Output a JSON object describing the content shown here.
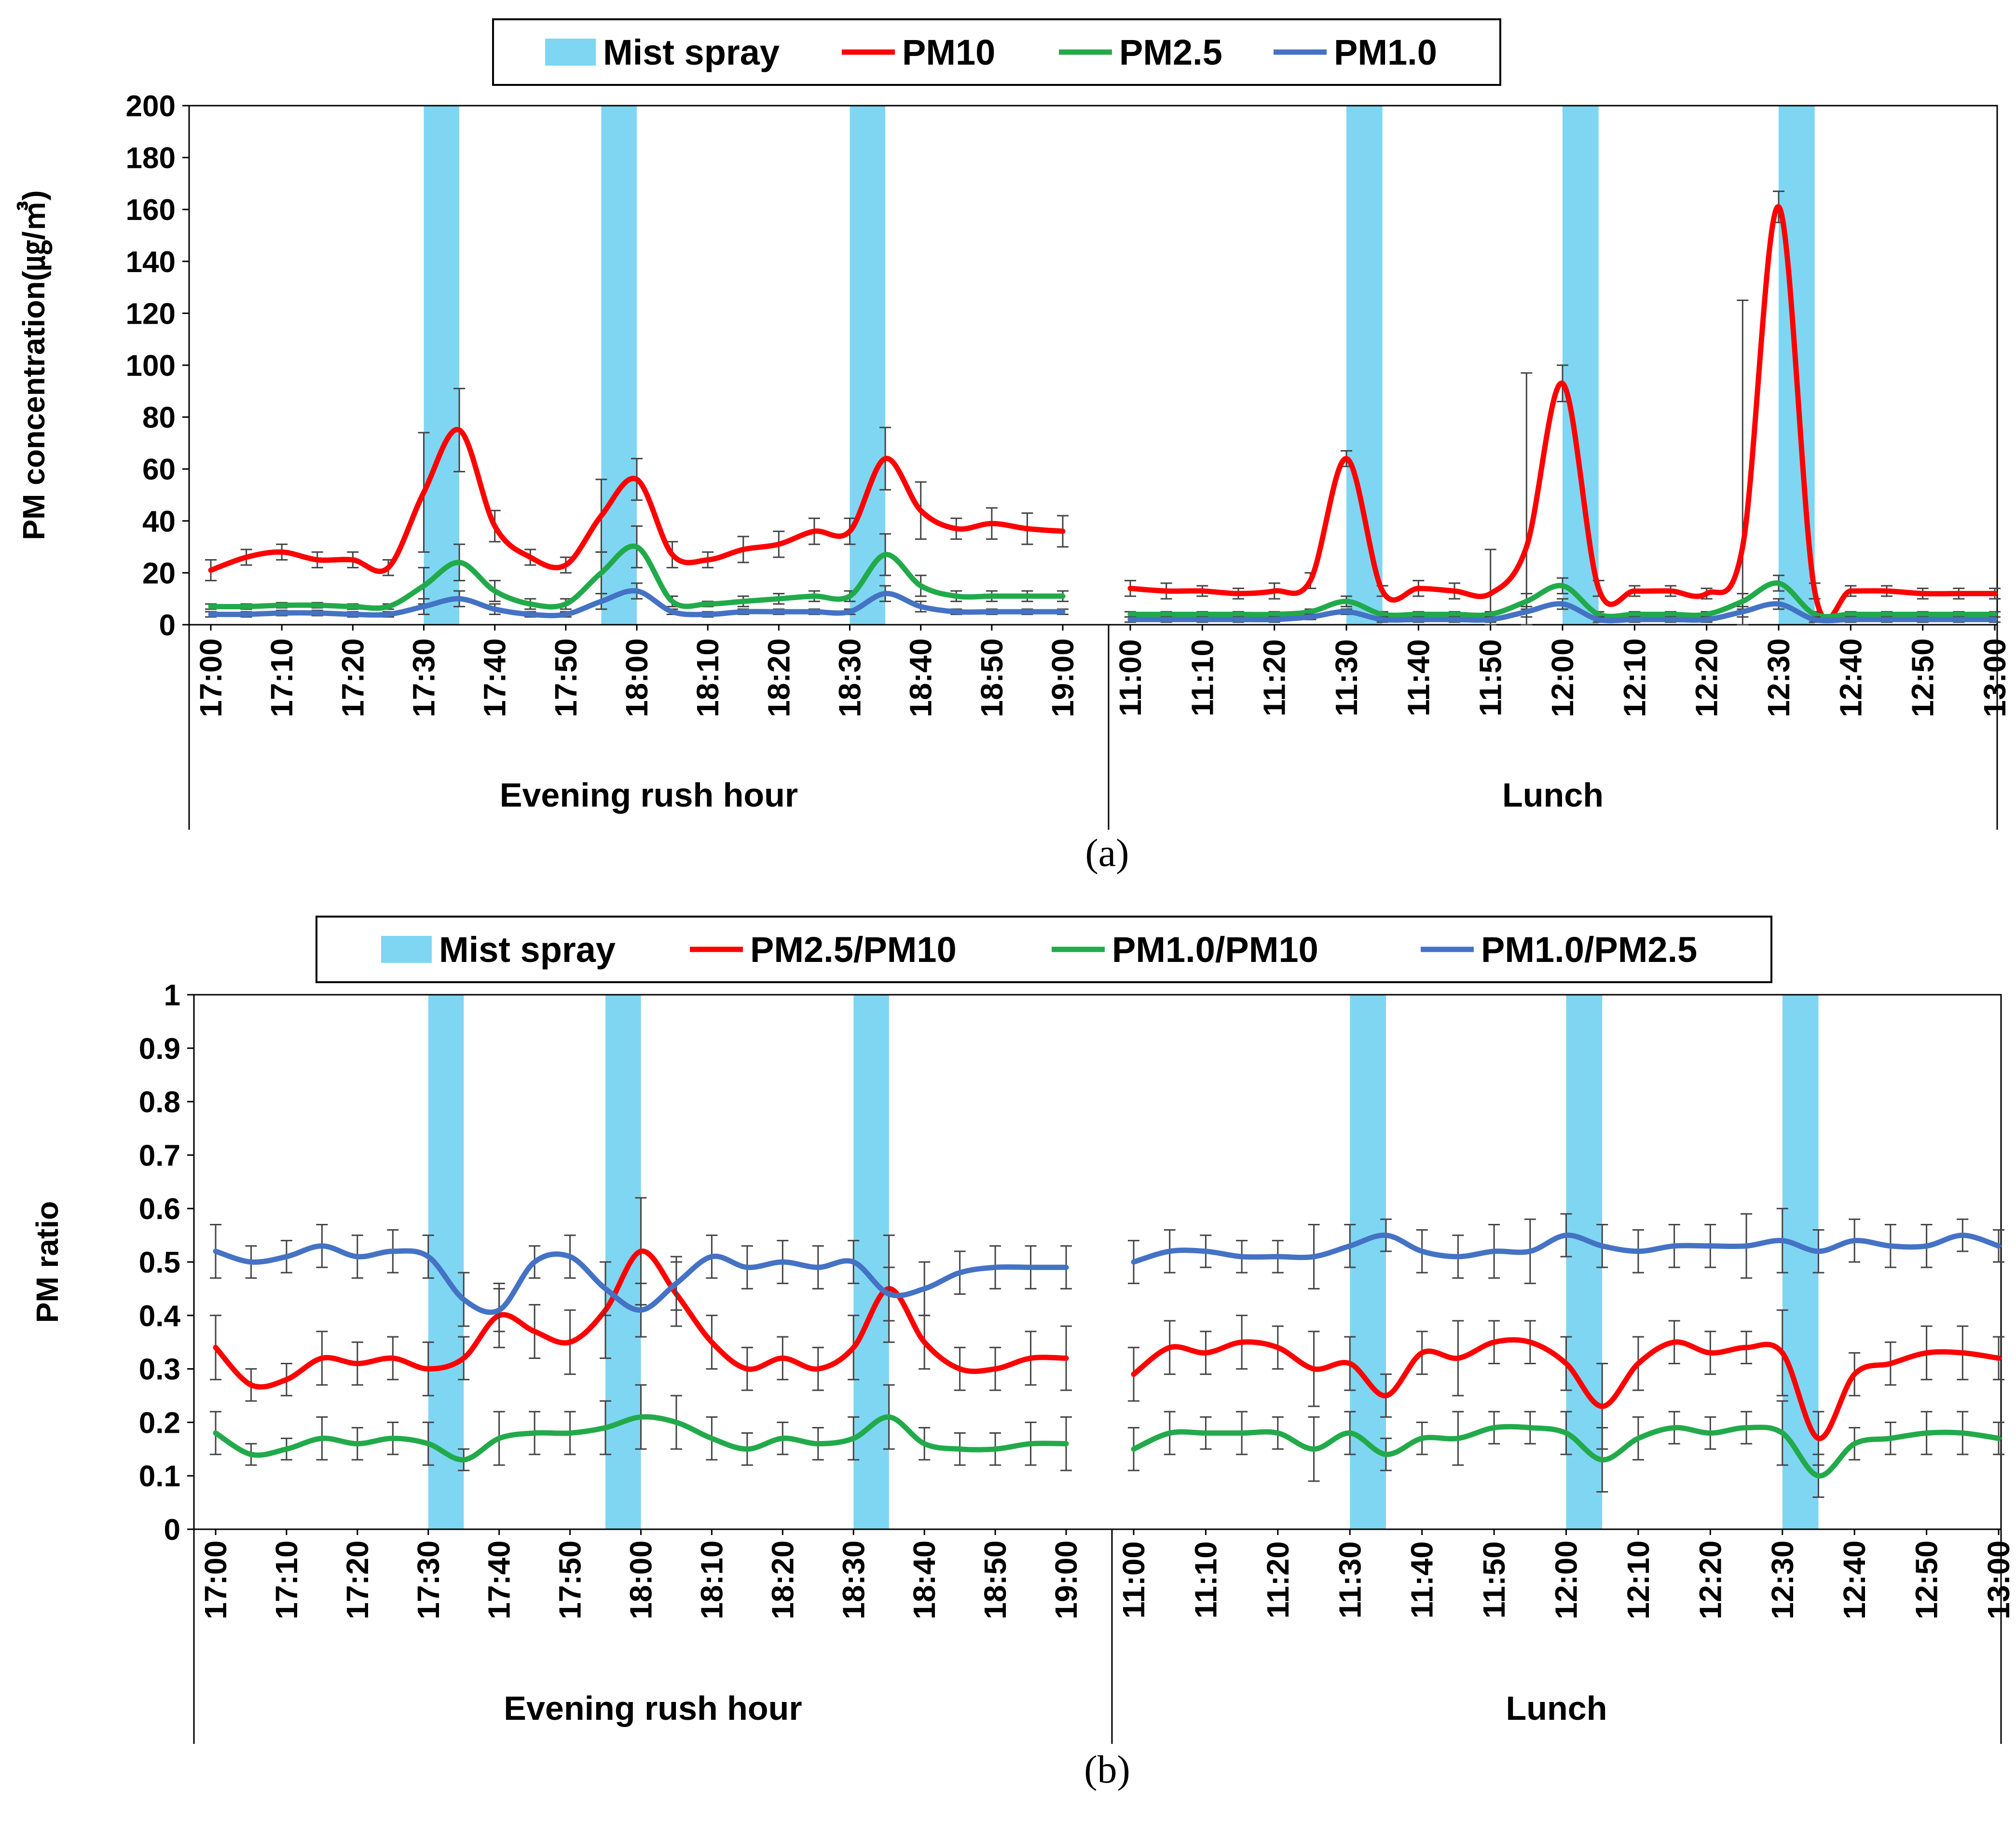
{
  "colors": {
    "mist": "#7fd6f2",
    "series_a": [
      "#ff0000",
      "#22aa4a",
      "#4472c4"
    ],
    "series_b": [
      "#ff0000",
      "#22aa4a",
      "#4472c4"
    ],
    "errorbar": "#444444",
    "axis": "#000000"
  },
  "charts": [
    {
      "panel_label": "(a)",
      "chart_data": {
        "type": "line",
        "ylabel": "PM concentration(㎍/㎥)",
        "ylim": [
          0,
          200
        ],
        "yticks": [
          0,
          20,
          40,
          60,
          80,
          100,
          120,
          140,
          160,
          180,
          200
        ],
        "ytick_labels": [
          "0",
          "20",
          "40",
          "60",
          "80",
          "100",
          "120",
          "140",
          "160",
          "180",
          "200"
        ],
        "legend": [
          "Mist spray",
          "PM10",
          "PM2.5",
          "PM1.0"
        ],
        "groups": [
          {
            "name": "Evening rush hour",
            "x_labels": [
              "17:00",
              "17:10",
              "17:20",
              "17:30",
              "17:40",
              "17:50",
              "18:00",
              "18:10",
              "18:20",
              "18:30",
              "18:40",
              "18:50",
              "19:00"
            ],
            "mist_spray_start_minutes": [
              30,
              55,
              90
            ],
            "series": [
              {
                "name": "PM10",
                "values": [
                  21,
                  26,
                  28,
                  25,
                  25,
                  22,
                  51,
                  75,
                  38,
                  26,
                  23,
                  42,
                  56,
                  27,
                  25,
                  29,
                  31,
                  36,
                  36,
                  64,
                  44,
                  37,
                  39,
                  37,
                  36
                ],
                "errors": [
                  4,
                  3,
                  3,
                  3,
                  3,
                  3,
                  23,
                  16,
                  6,
                  3,
                  3,
                  14,
                  8,
                  5,
                  3,
                  5,
                  5,
                  5,
                  5,
                  12,
                  11,
                  4,
                  6,
                  6,
                  6
                ]
              },
              {
                "name": "PM2.5",
                "values": [
                  7,
                  7,
                  7.5,
                  7.5,
                  7,
                  7,
                  15,
                  24,
                  13,
                  8,
                  8,
                  20,
                  30,
                  9,
                  8,
                  9,
                  10,
                  11,
                  11,
                  27,
                  15,
                  11,
                  11,
                  11,
                  11
                ],
                "errors": [
                  1,
                  1,
                  1,
                  1,
                  1,
                  1,
                  7,
                  7,
                  4,
                  2,
                  2,
                  8,
                  8,
                  2,
                  1,
                  2,
                  2,
                  2,
                  2,
                  8,
                  4,
                  2,
                  2,
                  2,
                  2
                ]
              },
              {
                "name": "PM1.0",
                "values": [
                  4,
                  4,
                  4.5,
                  4.5,
                  4,
                  4,
                  7,
                  10,
                  6,
                  4,
                  4,
                  9,
                  13,
                  5,
                  4,
                  5,
                  5,
                  5,
                  5,
                  12,
                  7,
                  5,
                  5,
                  5,
                  5
                ],
                "errors": [
                  1,
                  1,
                  1,
                  1,
                  1,
                  1,
                  3,
                  3,
                  2,
                  1,
                  1,
                  3,
                  3,
                  1,
                  1,
                  1,
                  1,
                  1,
                  1,
                  3,
                  2,
                  1,
                  1,
                  1,
                  1
                ]
              }
            ]
          },
          {
            "name": "Lunch",
            "x_labels": [
              "11:00",
              "11:10",
              "11:20",
              "11:30",
              "11:40",
              "11:50",
              "12:00",
              "12:10",
              "12:20",
              "12:30",
              "12:40",
              "12:50",
              "13:00"
            ],
            "mist_spray_start_minutes": [
              30,
              60,
              90
            ],
            "series": [
              {
                "name": "PM10",
                "values": [
                  14,
                  13,
                  13,
                  12,
                  13,
                  17,
                  64,
                  13,
                  14,
                  13,
                  12,
                  30,
                  93,
                  14,
                  13,
                  13,
                  12,
                  30,
                  161,
                  13,
                  13,
                  13,
                  12,
                  12,
                  12
                ],
                "errors": [
                  3,
                  3,
                  2,
                  2,
                  3,
                  3,
                  3,
                  2,
                  3,
                  3,
                  17,
                  67,
                  7,
                  3,
                  2,
                  2,
                  2,
                  95,
                  6,
                  3,
                  2,
                  2,
                  2,
                  2,
                  2
                ]
              },
              {
                "name": "PM2.5",
                "values": [
                  4,
                  4,
                  4,
                  4,
                  4,
                  5,
                  9,
                  4,
                  4,
                  4,
                  4,
                  9,
                  15,
                  4,
                  4,
                  4,
                  4,
                  9,
                  16,
                  4,
                  4,
                  4,
                  4,
                  4,
                  4
                ],
                "errors": [
                  1,
                  1,
                  1,
                  1,
                  1,
                  1,
                  2,
                  1,
                  1,
                  1,
                  1,
                  3,
                  3,
                  1,
                  1,
                  1,
                  1,
                  3,
                  3,
                  1,
                  1,
                  1,
                  1,
                  1,
                  1
                ]
              },
              {
                "name": "PM1.0",
                "values": [
                  2,
                  2,
                  2,
                  2,
                  2,
                  3,
                  5,
                  2,
                  2,
                  2,
                  2,
                  5,
                  8,
                  2,
                  2,
                  2,
                  2,
                  5,
                  8,
                  2,
                  2,
                  2,
                  2,
                  2,
                  2
                ],
                "errors": [
                  1,
                  1,
                  1,
                  1,
                  1,
                  1,
                  1,
                  1,
                  1,
                  1,
                  1,
                  2,
                  2,
                  1,
                  1,
                  1,
                  1,
                  2,
                  2,
                  1,
                  1,
                  1,
                  1,
                  1,
                  1
                ]
              }
            ]
          }
        ]
      }
    },
    {
      "panel_label": "(b)",
      "chart_data": {
        "type": "line",
        "ylabel": "PM ratio",
        "ylim": [
          0,
          1
        ],
        "yticks": [
          0,
          0.1,
          0.2,
          0.3,
          0.4,
          0.5,
          0.6,
          0.7,
          0.8,
          0.9,
          1
        ],
        "ytick_labels": [
          "0",
          "0.1",
          "0.2",
          "0.3",
          "0.4",
          "0.5",
          "0.6",
          "0.7",
          "0.8",
          "0.9",
          "1"
        ],
        "legend": [
          "Mist spray",
          "PM2.5/PM10",
          "PM1.0/PM10",
          "PM1.0/PM2.5"
        ],
        "groups": [
          {
            "name": "Evening rush hour",
            "x_labels": [
              "17:00",
              "17:10",
              "17:20",
              "17:30",
              "17:40",
              "17:50",
              "18:00",
              "18:10",
              "18:20",
              "18:30",
              "18:40",
              "18:50",
              "19:00"
            ],
            "mist_spray_start_minutes": [
              30,
              55,
              90
            ],
            "series": [
              {
                "name": "PM2.5/PM10",
                "values": [
                  0.34,
                  0.27,
                  0.28,
                  0.32,
                  0.31,
                  0.32,
                  0.3,
                  0.32,
                  0.4,
                  0.37,
                  0.35,
                  0.41,
                  0.52,
                  0.44,
                  0.35,
                  0.3,
                  0.32,
                  0.3,
                  0.34,
                  0.45,
                  0.35,
                  0.3,
                  0.3,
                  0.32,
                  0.32
                ],
                "errors": [
                  0.06,
                  0.03,
                  0.03,
                  0.05,
                  0.04,
                  0.04,
                  0.05,
                  0.04,
                  0.06,
                  0.05,
                  0.06,
                  0.09,
                  0.1,
                  0.06,
                  0.05,
                  0.04,
                  0.04,
                  0.04,
                  0.06,
                  0.1,
                  0.05,
                  0.04,
                  0.04,
                  0.05,
                  0.06
                ]
              },
              {
                "name": "PM1.0/PM10",
                "values": [
                  0.18,
                  0.14,
                  0.15,
                  0.17,
                  0.16,
                  0.17,
                  0.16,
                  0.13,
                  0.17,
                  0.18,
                  0.18,
                  0.19,
                  0.21,
                  0.2,
                  0.17,
                  0.15,
                  0.17,
                  0.16,
                  0.17,
                  0.21,
                  0.16,
                  0.15,
                  0.15,
                  0.16,
                  0.16
                ],
                "errors": [
                  0.04,
                  0.02,
                  0.02,
                  0.04,
                  0.03,
                  0.03,
                  0.04,
                  0.02,
                  0.05,
                  0.04,
                  0.04,
                  0.05,
                  0.06,
                  0.05,
                  0.04,
                  0.03,
                  0.03,
                  0.03,
                  0.04,
                  0.06,
                  0.03,
                  0.03,
                  0.03,
                  0.04,
                  0.05
                ]
              },
              {
                "name": "PM1.0/PM2.5",
                "values": [
                  0.52,
                  0.5,
                  0.51,
                  0.53,
                  0.51,
                  0.52,
                  0.51,
                  0.43,
                  0.41,
                  0.5,
                  0.51,
                  0.45,
                  0.41,
                  0.46,
                  0.51,
                  0.49,
                  0.5,
                  0.49,
                  0.5,
                  0.44,
                  0.45,
                  0.48,
                  0.49,
                  0.49,
                  0.49
                ],
                "errors": [
                  0.05,
                  0.03,
                  0.03,
                  0.04,
                  0.04,
                  0.04,
                  0.04,
                  0.05,
                  0.04,
                  0.03,
                  0.04,
                  0.05,
                  0.05,
                  0.05,
                  0.04,
                  0.04,
                  0.04,
                  0.04,
                  0.04,
                  0.05,
                  0.05,
                  0.04,
                  0.04,
                  0.04,
                  0.04
                ]
              }
            ]
          },
          {
            "name": "Lunch",
            "x_labels": [
              "11:00",
              "11:10",
              "11:20",
              "11:30",
              "11:40",
              "11:50",
              "12:00",
              "12:10",
              "12:20",
              "12:30",
              "12:40",
              "12:50",
              "13:00"
            ],
            "mist_spray_start_minutes": [
              30,
              60,
              90
            ],
            "series": [
              {
                "name": "PM2.5/PM10",
                "values": [
                  0.29,
                  0.34,
                  0.33,
                  0.35,
                  0.34,
                  0.3,
                  0.31,
                  0.25,
                  0.33,
                  0.32,
                  0.35,
                  0.35,
                  0.31,
                  0.23,
                  0.31,
                  0.35,
                  0.33,
                  0.34,
                  0.33,
                  0.17,
                  0.29,
                  0.31,
                  0.33,
                  0.33,
                  0.32
                ],
                "errors": [
                  0.05,
                  0.05,
                  0.04,
                  0.05,
                  0.04,
                  0.07,
                  0.05,
                  0.04,
                  0.04,
                  0.07,
                  0.04,
                  0.04,
                  0.05,
                  0.08,
                  0.05,
                  0.04,
                  0.04,
                  0.03,
                  0.08,
                  0.05,
                  0.04,
                  0.04,
                  0.05,
                  0.05,
                  0.04
                ]
              },
              {
                "name": "PM1.0/PM10",
                "values": [
                  0.15,
                  0.18,
                  0.18,
                  0.18,
                  0.18,
                  0.15,
                  0.18,
                  0.14,
                  0.17,
                  0.17,
                  0.19,
                  0.19,
                  0.18,
                  0.13,
                  0.17,
                  0.19,
                  0.18,
                  0.19,
                  0.18,
                  0.1,
                  0.16,
                  0.17,
                  0.18,
                  0.18,
                  0.17
                ],
                "errors": [
                  0.04,
                  0.04,
                  0.03,
                  0.04,
                  0.03,
                  0.06,
                  0.04,
                  0.03,
                  0.03,
                  0.05,
                  0.03,
                  0.03,
                  0.04,
                  0.06,
                  0.04,
                  0.03,
                  0.03,
                  0.03,
                  0.06,
                  0.04,
                  0.03,
                  0.03,
                  0.04,
                  0.04,
                  0.03
                ]
              },
              {
                "name": "PM1.0/PM2.5",
                "values": [
                  0.5,
                  0.52,
                  0.52,
                  0.51,
                  0.51,
                  0.51,
                  0.53,
                  0.55,
                  0.52,
                  0.51,
                  0.52,
                  0.52,
                  0.55,
                  0.53,
                  0.52,
                  0.53,
                  0.53,
                  0.53,
                  0.54,
                  0.52,
                  0.54,
                  0.53,
                  0.53,
                  0.55,
                  0.53
                ],
                "errors": [
                  0.04,
                  0.04,
                  0.03,
                  0.03,
                  0.03,
                  0.06,
                  0.04,
                  0.03,
                  0.04,
                  0.04,
                  0.05,
                  0.06,
                  0.04,
                  0.04,
                  0.04,
                  0.04,
                  0.04,
                  0.06,
                  0.06,
                  0.04,
                  0.04,
                  0.04,
                  0.04,
                  0.03,
                  0.03
                ]
              }
            ]
          }
        ]
      }
    }
  ]
}
